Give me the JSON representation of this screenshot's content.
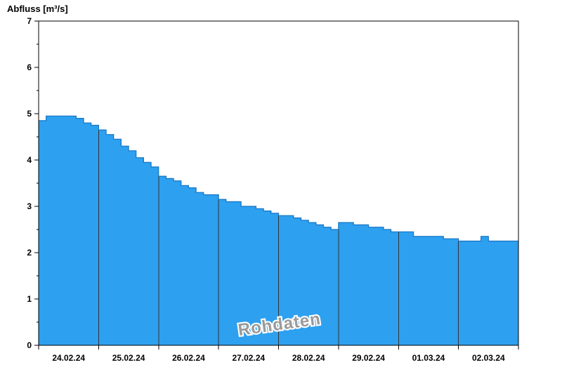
{
  "chart_data": {
    "type": "area",
    "title": "Abfluss [m³/s]",
    "watermark": "Rohdaten",
    "ylim": [
      0,
      7
    ],
    "y_tick_labels": [
      "0",
      "1",
      "2",
      "3",
      "4",
      "5",
      "6",
      "7"
    ],
    "y_minor_step": 0.5,
    "x_tick_labels": [
      "24.02.24",
      "25.02.24",
      "26.02.24",
      "27.02.24",
      "28.02.24",
      "29.02.24",
      "01.03.24",
      "02.03.24"
    ],
    "grid": "vertical-day-lines-inside-area",
    "legend": "none",
    "series": [
      {
        "name": "Abfluss Rohdaten",
        "step_hours": 3,
        "unit": "m³/s",
        "values": [
          4.85,
          4.95,
          4.95,
          4.95,
          4.95,
          4.9,
          4.8,
          4.75,
          4.65,
          4.55,
          4.45,
          4.3,
          4.2,
          4.05,
          3.95,
          3.85,
          3.65,
          3.6,
          3.55,
          3.45,
          3.4,
          3.3,
          3.25,
          3.25,
          3.15,
          3.1,
          3.1,
          3.0,
          3.0,
          2.95,
          2.9,
          2.85,
          2.8,
          2.8,
          2.75,
          2.7,
          2.65,
          2.6,
          2.55,
          2.5,
          2.65,
          2.65,
          2.6,
          2.6,
          2.55,
          2.55,
          2.5,
          2.45,
          2.45,
          2.45,
          2.35,
          2.35,
          2.35,
          2.35,
          2.3,
          2.3,
          2.25,
          2.25,
          2.25,
          2.35,
          2.25,
          2.25,
          2.25,
          2.25
        ]
      }
    ],
    "colors": {
      "fill": "#2da0f0",
      "outline": "#1474c4",
      "grid": "#333333",
      "axis": "#000000",
      "watermark": "#9a9a9a"
    }
  }
}
